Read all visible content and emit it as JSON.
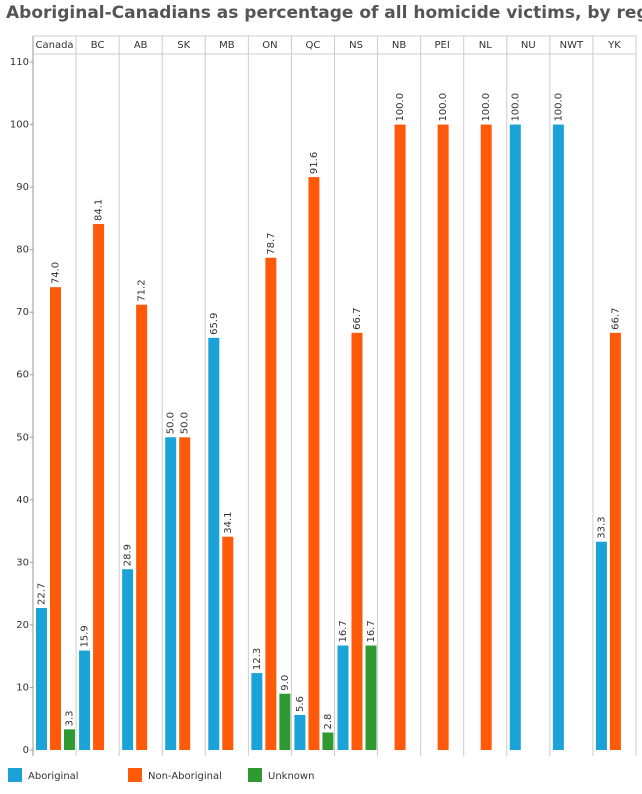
{
  "chart_data": {
    "type": "bar",
    "title": "Aboriginal-Canadians as percentage of all homicide victims, by region",
    "categories": [
      "Canada",
      "BC",
      "AB",
      "SK",
      "MB",
      "ON",
      "QC",
      "NS",
      "NB",
      "PEI",
      "NL",
      "NU",
      "NWT",
      "YK"
    ],
    "series": [
      {
        "name": "Aboriginal",
        "color": "#1ba3d8",
        "values": [
          22.7,
          15.9,
          28.9,
          50.0,
          65.9,
          12.3,
          5.6,
          16.7,
          null,
          null,
          null,
          100,
          100,
          33.3
        ],
        "value_labels": [
          "22.7",
          "15.9",
          "28.9",
          "50.0",
          "65.9",
          "12.3",
          "5.6",
          "16.7",
          null,
          null,
          null,
          "100.0",
          "100.0",
          "33.3"
        ]
      },
      {
        "name": "Non-Aboriginal",
        "color": "#ff5a0a",
        "values": [
          74.0,
          84.1,
          71.2,
          50.0,
          34.1,
          78.7,
          91.6,
          66.7,
          100,
          100,
          100,
          null,
          null,
          66.7
        ],
        "value_labels": [
          "74.0",
          "84.1",
          "71.2",
          "50.0",
          "34.1",
          "78.7",
          "91.6",
          "66.7",
          "100.0",
          "100.0",
          "100.0",
          null,
          null,
          "66.7"
        ]
      },
      {
        "name": "Unknown",
        "color": "#2e9a31",
        "values": [
          3.3,
          null,
          null,
          null,
          null,
          9.0,
          2.8,
          16.7,
          null,
          null,
          null,
          null,
          null,
          null
        ],
        "value_labels": [
          "3.3",
          null,
          null,
          null,
          null,
          "9.0",
          "2.8",
          "16.7",
          null,
          null,
          null,
          null,
          null,
          null
        ]
      }
    ],
    "ylim": [
      0,
      110
    ],
    "yticks": [
      0,
      10,
      20,
      30,
      40,
      50,
      60,
      70,
      80,
      90,
      100,
      110
    ],
    "legend": "bottom"
  }
}
